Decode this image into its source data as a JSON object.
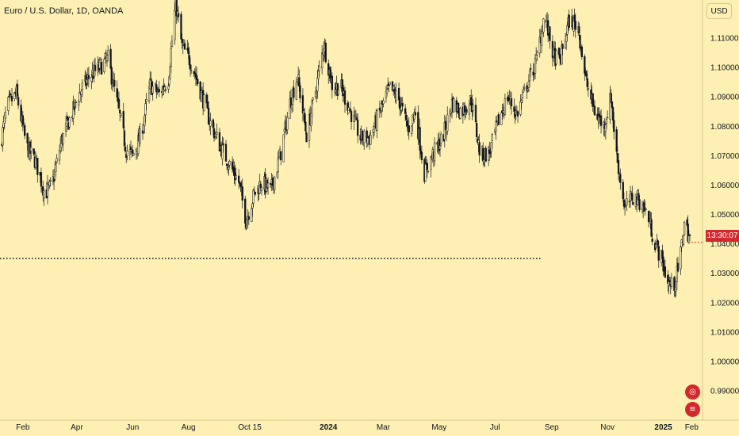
{
  "header": {
    "title": "Euro / U.S. Dollar, 1D, OANDA"
  },
  "axis": {
    "currency_label": "USD",
    "countdown_label": "13:30:07"
  },
  "events": [
    {
      "icon": "eu-flag-icon",
      "glyph": "◎"
    },
    {
      "icon": "us-flag-icon",
      "glyph": "≡"
    }
  ],
  "colors": {
    "background": "#fdf0b2",
    "candle": "#131722",
    "price_label": "#d1292e",
    "dotted_line": "#131722"
  },
  "chart_data": {
    "type": "candlestick",
    "ylim": [
      0.98,
      1.125
    ],
    "y_ticks": [
      0.99,
      1.0,
      1.01,
      1.02,
      1.03,
      1.04,
      1.05,
      1.06,
      1.07,
      1.08,
      1.09,
      1.1,
      1.11
    ],
    "y_tick_labels": [
      "0.99000",
      "1.00000",
      "1.01000",
      "1.02000",
      "1.03000",
      "1.04000",
      "1.05000",
      "1.06000",
      "1.07000",
      "1.08000",
      "1.09000",
      "1.10000",
      "1.11000"
    ],
    "x_ticks": [
      {
        "label": "Feb",
        "date": "2023-02-01"
      },
      {
        "label": "Apr",
        "date": "2023-04-01"
      },
      {
        "label": "Jun",
        "date": "2023-06-01"
      },
      {
        "label": "Aug",
        "date": "2023-08-01"
      },
      {
        "label": "Oct",
        "date": "2023-10-01"
      },
      {
        "label": "15",
        "date": "2023-10-15"
      },
      {
        "label": "2024",
        "date": "2024-01-01",
        "bold": true
      },
      {
        "label": "Mar",
        "date": "2024-03-01"
      },
      {
        "label": "May",
        "date": "2024-05-01"
      },
      {
        "label": "Jul",
        "date": "2024-07-01"
      },
      {
        "label": "Sep",
        "date": "2024-09-01"
      },
      {
        "label": "Nov",
        "date": "2024-11-01"
      },
      {
        "label": "2025",
        "date": "2025-01-01",
        "bold": true
      },
      {
        "label": "Feb",
        "date": "2025-02-01"
      }
    ],
    "x_range": [
      "2023-01-07",
      "2025-01-30"
    ],
    "horizontal_line": {
      "value": 1.035,
      "style": "dotted",
      "from": "2023-01-07",
      "to": "2024-08-20"
    },
    "current_price": 1.0405,
    "price_anchors": [
      [
        "2023-01-07",
        1.073
      ],
      [
        "2023-01-15",
        1.087
      ],
      [
        "2023-01-25",
        1.091
      ],
      [
        "2023-02-05",
        1.073
      ],
      [
        "2023-02-15",
        1.068
      ],
      [
        "2023-02-25",
        1.057
      ],
      [
        "2023-03-05",
        1.06
      ],
      [
        "2023-03-15",
        1.075
      ],
      [
        "2023-03-25",
        1.083
      ],
      [
        "2023-04-05",
        1.092
      ],
      [
        "2023-04-15",
        1.097
      ],
      [
        "2023-04-26",
        1.1
      ],
      [
        "2023-05-05",
        1.103
      ],
      [
        "2023-05-15",
        1.088
      ],
      [
        "2023-05-25",
        1.072
      ],
      [
        "2023-06-01",
        1.07
      ],
      [
        "2023-06-10",
        1.077
      ],
      [
        "2023-06-20",
        1.094
      ],
      [
        "2023-06-30",
        1.091
      ],
      [
        "2023-07-10",
        1.096
      ],
      [
        "2023-07-18",
        1.122
      ],
      [
        "2023-07-25",
        1.107
      ],
      [
        "2023-08-05",
        1.101
      ],
      [
        "2023-08-15",
        1.091
      ],
      [
        "2023-08-25",
        1.081
      ],
      [
        "2023-09-05",
        1.073
      ],
      [
        "2023-09-15",
        1.067
      ],
      [
        "2023-09-25",
        1.061
      ],
      [
        "2023-10-03",
        1.048
      ],
      [
        "2023-10-12",
        1.057
      ],
      [
        "2023-10-20",
        1.061
      ],
      [
        "2023-10-30",
        1.058
      ],
      [
        "2023-11-10",
        1.071
      ],
      [
        "2023-11-20",
        1.088
      ],
      [
        "2023-11-28",
        1.097
      ],
      [
        "2023-12-08",
        1.077
      ],
      [
        "2023-12-18",
        1.092
      ],
      [
        "2023-12-27",
        1.108
      ],
      [
        "2024-01-05",
        1.094
      ],
      [
        "2024-01-15",
        1.093
      ],
      [
        "2024-01-25",
        1.085
      ],
      [
        "2024-02-05",
        1.076
      ],
      [
        "2024-02-15",
        1.076
      ],
      [
        "2024-02-25",
        1.084
      ],
      [
        "2024-03-08",
        1.093
      ],
      [
        "2024-03-18",
        1.089
      ],
      [
        "2024-03-28",
        1.079
      ],
      [
        "2024-04-05",
        1.085
      ],
      [
        "2024-04-15",
        1.064
      ],
      [
        "2024-04-25",
        1.071
      ],
      [
        "2024-05-05",
        1.076
      ],
      [
        "2024-05-15",
        1.088
      ],
      [
        "2024-05-25",
        1.085
      ],
      [
        "2024-06-05",
        1.089
      ],
      [
        "2024-06-15",
        1.07
      ],
      [
        "2024-06-25",
        1.071
      ],
      [
        "2024-07-05",
        1.082
      ],
      [
        "2024-07-15",
        1.09
      ],
      [
        "2024-07-25",
        1.084
      ],
      [
        "2024-08-05",
        1.094
      ],
      [
        "2024-08-15",
        1.102
      ],
      [
        "2024-08-24",
        1.118
      ],
      [
        "2024-09-03",
        1.104
      ],
      [
        "2024-09-10",
        1.102
      ],
      [
        "2024-09-20",
        1.116
      ],
      [
        "2024-09-30",
        1.114
      ],
      [
        "2024-10-08",
        1.096
      ],
      [
        "2024-10-18",
        1.085
      ],
      [
        "2024-10-28",
        1.08
      ],
      [
        "2024-11-05",
        1.09
      ],
      [
        "2024-11-10",
        1.072
      ],
      [
        "2024-11-20",
        1.052
      ],
      [
        "2024-11-28",
        1.056
      ],
      [
        "2024-12-05",
        1.055
      ],
      [
        "2024-12-15",
        1.05
      ],
      [
        "2024-12-22",
        1.041
      ],
      [
        "2024-12-30",
        1.035
      ],
      [
        "2025-01-06",
        1.027
      ],
      [
        "2025-01-12",
        1.025
      ],
      [
        "2025-01-18",
        1.032
      ],
      [
        "2025-01-24",
        1.047
      ],
      [
        "2025-01-30",
        1.042
      ]
    ]
  }
}
